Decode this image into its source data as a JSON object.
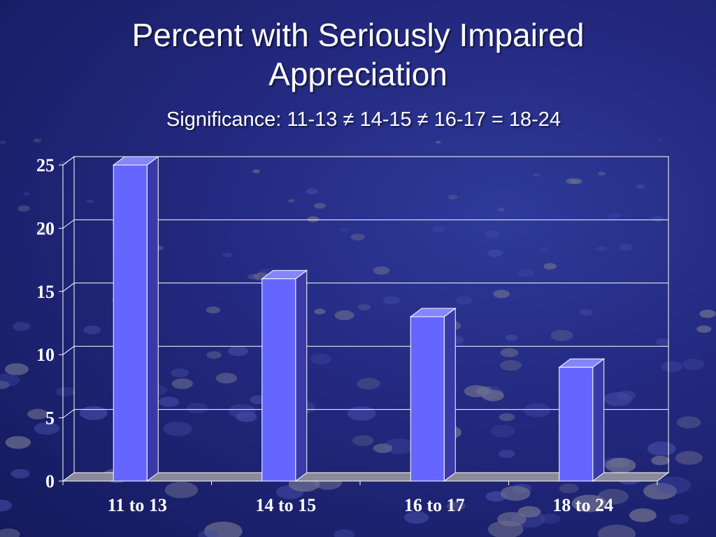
{
  "slide": {
    "title_line1": "Percent with Seriously Impaired",
    "title_line2": "Appreciation",
    "subtitle": "Significance: 11-13 ≠ 14-15 ≠ 16-17 = 18-24"
  },
  "colors": {
    "bar_front": "#6565ff",
    "bar_top": "#8585ff",
    "bar_side": "#3a3aa6",
    "background": "#23287e",
    "gridline": "#ffffff"
  },
  "chart_data": {
    "type": "bar",
    "categories": [
      "11 to 13",
      "14 to 15",
      "16 to 17",
      "18 to 24"
    ],
    "values": [
      25,
      16,
      13,
      9
    ],
    "ylim": [
      0,
      25
    ],
    "yticks": [
      0,
      5,
      10,
      15,
      20,
      25
    ],
    "grid": true,
    "style": "3d"
  }
}
